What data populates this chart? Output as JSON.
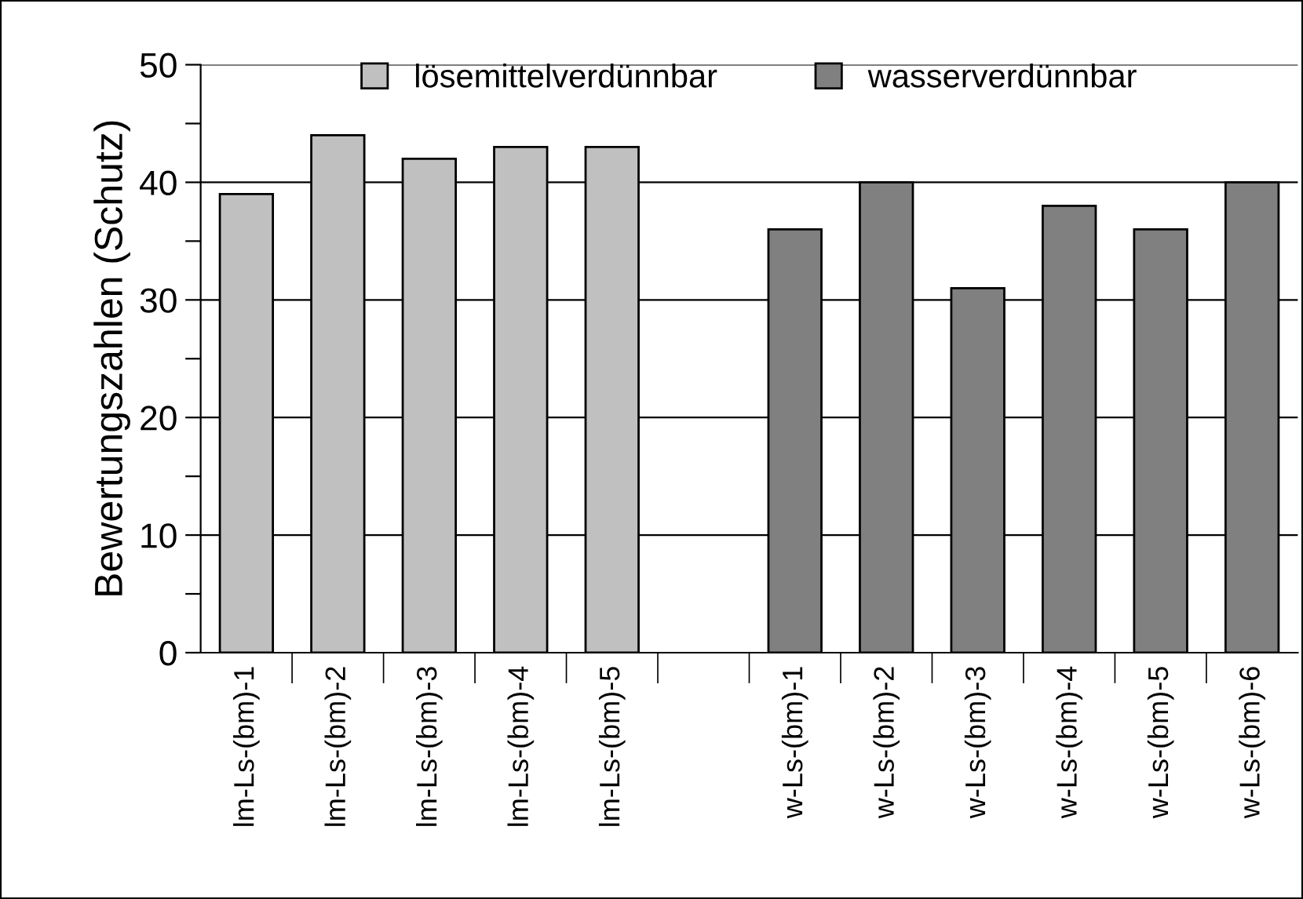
{
  "chart_data": {
    "type": "bar",
    "ylabel": "Bewertungszahlen (Schutz)",
    "categories": [
      "lm-Ls-(bm)-1",
      "lm-Ls-(bm)-2",
      "lm-Ls-(bm)-3",
      "lm-Ls-(bm)-4",
      "lm-Ls-(bm)-5",
      null,
      "w-Ls-(bm)-1",
      "w-Ls-(bm)-2",
      "w-Ls-(bm)-3",
      "w-Ls-(bm)-4",
      "w-Ls-(bm)-5",
      "w-Ls-(bm)-6"
    ],
    "series": [
      {
        "name": "lösemittelverdünnbar",
        "color": "#c0c0c0",
        "values": [
          39,
          44,
          42,
          43,
          43,
          null,
          null,
          null,
          null,
          null,
          null,
          null
        ]
      },
      {
        "name": "wasserverdünnbar",
        "color": "#808080",
        "values": [
          null,
          null,
          null,
          null,
          null,
          null,
          36,
          40,
          31,
          38,
          36,
          40
        ]
      }
    ],
    "ylim": [
      0,
      50
    ],
    "yticks": [
      0,
      {
        "value": 5,
        "label": null
      },
      10,
      {
        "value": 15,
        "label": null
      },
      20,
      {
        "value": 25,
        "label": null
      },
      30,
      {
        "value": 35,
        "label": null
      },
      40,
      {
        "value": 45,
        "label": null
      },
      50
    ],
    "grid": "y",
    "legend": "top"
  }
}
